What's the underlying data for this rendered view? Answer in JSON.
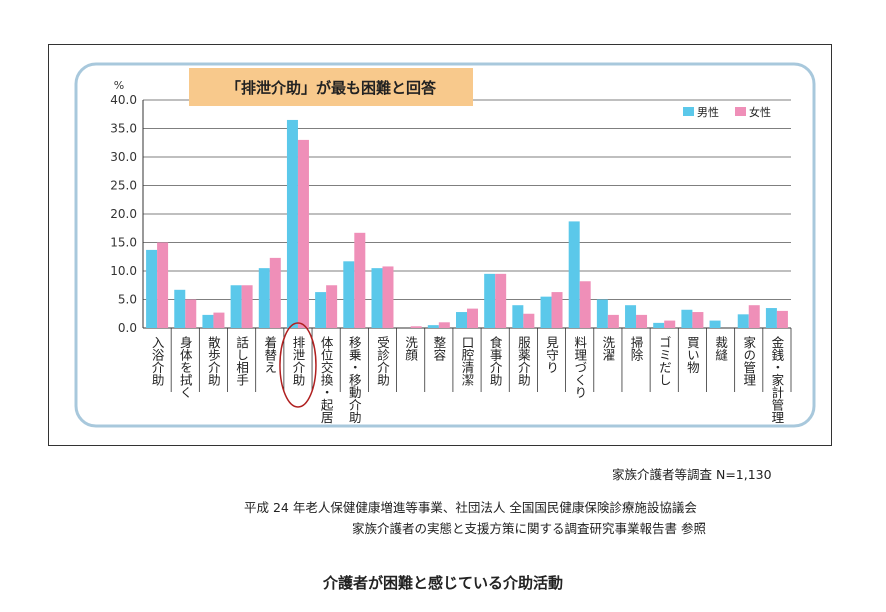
{
  "chart_data": {
    "type": "bar",
    "highlight_label": "「排泄介助」が最も困難と回答",
    "highlight_category": "排泄介助",
    "y_unit": "%",
    "ylim": [
      0,
      40
    ],
    "yticks": [
      "40.0",
      "35.0",
      "30.0",
      "25.0",
      "20.0",
      "15.0",
      "10.0",
      "5.0",
      "0.0"
    ],
    "grid": true,
    "legend_position": "top-right",
    "categories": [
      "入浴介助",
      "身体を拭く",
      "散歩介助",
      "話し相手",
      "着替え",
      "排泄介助",
      "体位交換・起居",
      "移乗・移動介助",
      "受診介助",
      "洗顔",
      "整容",
      "口腔清潔",
      "食事介助",
      "服薬介助",
      "見守り",
      "料理づくり",
      "洗濯",
      "掃除",
      "ゴミだし",
      "買い物",
      "裁縫",
      "家の管理",
      "金銭・家計管理"
    ],
    "series": [
      {
        "name": "男性",
        "color": "#5bc8ea",
        "values": [
          13.7,
          6.7,
          2.3,
          7.5,
          10.5,
          36.5,
          6.3,
          11.7,
          10.5,
          0.0,
          0.5,
          2.8,
          9.5,
          4.0,
          5.5,
          18.7,
          5.0,
          4.0,
          0.9,
          3.2,
          1.3,
          2.4,
          3.5
        ]
      },
      {
        "name": "女性",
        "color": "#ef8fb8",
        "values": [
          15.0,
          5.0,
          2.7,
          7.5,
          12.3,
          33.0,
          7.5,
          16.7,
          10.8,
          0.3,
          1.0,
          3.4,
          9.5,
          2.5,
          6.3,
          8.2,
          2.3,
          2.3,
          1.3,
          2.8,
          0.0,
          4.0,
          3.0
        ]
      }
    ]
  },
  "notes": {
    "survey": "家族介護者等調査  N=1,130",
    "source_1": "平成 24 年老人保健健康増進等事業、社団法人  全国国民健康保険診療施設協議会",
    "source_2": "家族介護者の実態と支援方策に関する調査研究事業報告書  参照"
  },
  "caption": "介護者が困難と感じている介助活動",
  "colors": {
    "panel_border": "#a8c8dc",
    "grid": "#555555",
    "highlight_box": "#f8c98c",
    "circle": "#b02020"
  }
}
